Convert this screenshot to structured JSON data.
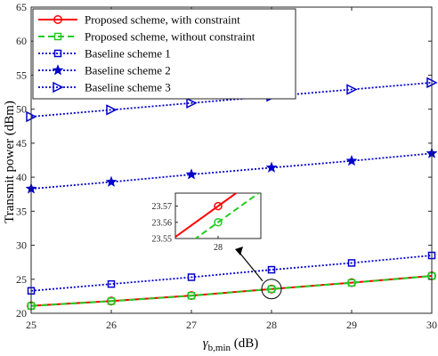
{
  "chart_data": {
    "type": "line",
    "ylabel": "Transmit power (dBm)",
    "xlabel": {
      "main": "γ",
      "sub": "b,min",
      "unit": " (dB)"
    },
    "xlim": [
      25,
      30
    ],
    "ylim": [
      20,
      65
    ],
    "x_ticks": [
      25,
      26,
      27,
      28,
      29,
      30
    ],
    "y_ticks": [
      20,
      25,
      30,
      35,
      40,
      45,
      50,
      55,
      60,
      65
    ],
    "grid": false,
    "legend_position": "top-left",
    "x": [
      25,
      26,
      27,
      28,
      29,
      30
    ],
    "series": [
      {
        "name": "Proposed scheme, with constraint",
        "values": [
          21.1,
          21.8,
          22.6,
          23.57,
          24.5,
          25.5
        ],
        "color": "#ff0000",
        "style": "solid",
        "marker": "circle"
      },
      {
        "name": "Proposed scheme, without constraint",
        "values": [
          21.08,
          21.78,
          22.58,
          23.56,
          24.48,
          25.48
        ],
        "color": "#22cc22",
        "style": "dashed",
        "marker": "square"
      },
      {
        "name": "Baseline scheme 1",
        "values": [
          23.3,
          24.3,
          25.3,
          26.4,
          27.4,
          28.5
        ],
        "color": "#0000cc",
        "style": "dotted",
        "marker": "square"
      },
      {
        "name": "Baseline scheme 2",
        "values": [
          38.3,
          39.3,
          40.4,
          41.4,
          42.4,
          43.5
        ],
        "color": "#0000cc",
        "style": "dotted",
        "marker": "star"
      },
      {
        "name": "Baseline scheme 3",
        "values": [
          48.9,
          49.9,
          50.9,
          51.9,
          52.9,
          53.9
        ],
        "color": "#0000cc",
        "style": "dotted",
        "marker": "triangle-right"
      }
    ],
    "inset": {
      "x_ticks": [
        28
      ],
      "y_ticks": [
        23.55,
        23.56,
        23.57
      ],
      "y_tick_labels": [
        "23.55",
        "23.56",
        "23.57"
      ],
      "xlim": [
        27.98,
        28.02
      ],
      "ylim": [
        23.55,
        23.578
      ],
      "highlight_x": 28
    }
  }
}
